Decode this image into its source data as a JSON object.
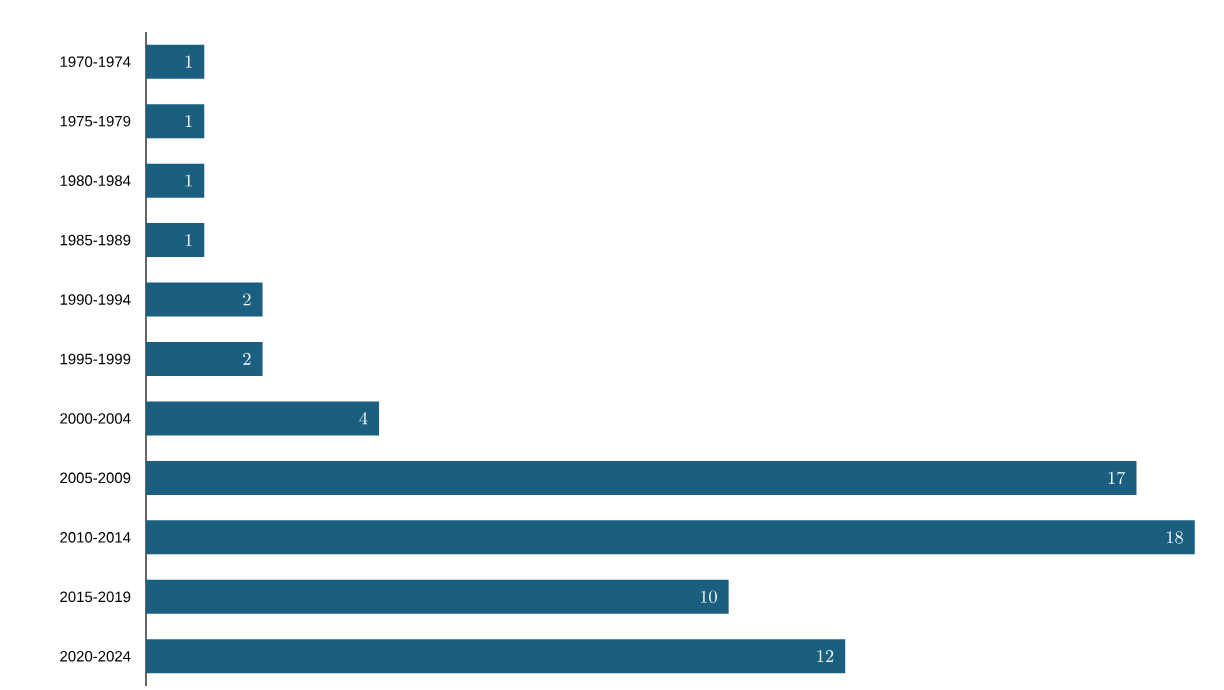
{
  "chart_data": {
    "type": "bar",
    "orientation": "horizontal",
    "categories": [
      "1970-1974",
      "1975-1979",
      "1980-1984",
      "1985-1989",
      "1990-1994",
      "1995-1999",
      "2000-2004",
      "2005-2009",
      "2010-2014",
      "2015-2019",
      "2020-2024"
    ],
    "values": [
      1,
      1,
      1,
      1,
      2,
      2,
      4,
      17,
      18,
      10,
      12
    ],
    "color": "#1a5e80",
    "data_labels": true
  }
}
